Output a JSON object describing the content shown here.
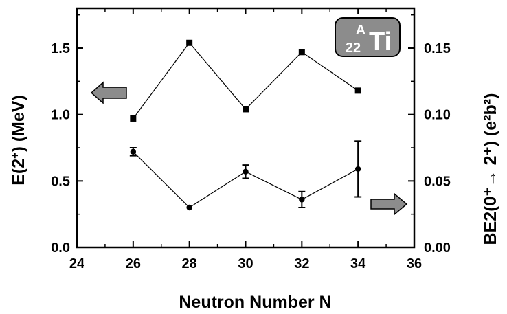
{
  "chart_data": {
    "type": "line",
    "xlabel": "Neutron Number N",
    "ylabel_left_main": "E(2",
    "ylabel_left_sup": "+",
    "ylabel_left_tail": ") (MeV)",
    "ylabel_right": "BE2(0⁺→ 2⁺) (e²b²)",
    "xlim": [
      24,
      36
    ],
    "ylim_left": [
      0,
      1.8
    ],
    "ylim_right": [
      0,
      0.18
    ],
    "x_ticks": [
      "24",
      "26",
      "28",
      "30",
      "32",
      "34",
      "36"
    ],
    "y_left_ticks": [
      "0.0",
      "0.5",
      "1.0",
      "1.5"
    ],
    "y_right_ticks": [
      "0.00",
      "0.05",
      "0.10",
      "0.15"
    ],
    "grid": false,
    "series": [
      {
        "axis": "left",
        "marker": "square",
        "x": [
          26,
          28,
          30,
          32,
          34
        ],
        "y": [
          0.97,
          1.54,
          1.04,
          1.47,
          1.18
        ]
      },
      {
        "axis": "right",
        "marker": "circle",
        "x": [
          26,
          28,
          30,
          32,
          34
        ],
        "y": [
          0.072,
          0.03,
          0.057,
          0.036,
          0.059
        ],
        "err": [
          0.003,
          0.0,
          0.005,
          0.006,
          0.021
        ]
      }
    ],
    "annotations": {
      "badge_mass": "A",
      "badge_atomic": "22",
      "badge_symbol": "Ti",
      "arrow_left": "points to left axis",
      "arrow_right": "points to right axis"
    }
  },
  "colors": {
    "line": "#000000",
    "badge_fill": "#8c8c8c",
    "arrow_fill": "#8c8c8c"
  }
}
